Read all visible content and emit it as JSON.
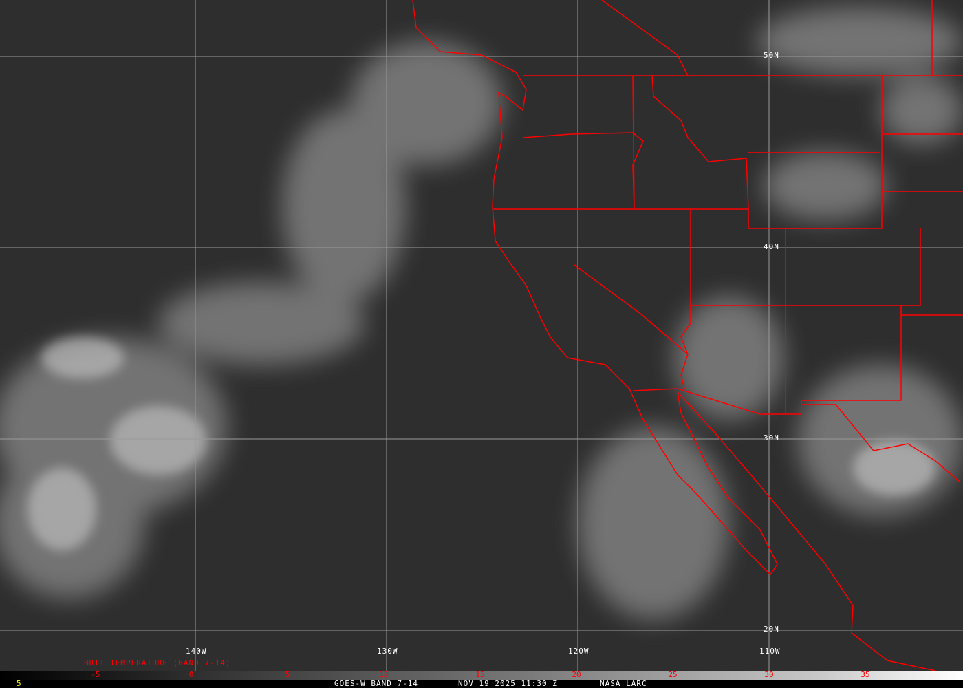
{
  "image": {
    "graticule": {
      "longitudes": [
        "140W",
        "130W",
        "120W",
        "110W"
      ],
      "latitudes": [
        "50N",
        "40N",
        "30N",
        "20N"
      ]
    },
    "colors": {
      "borders": "#ff0000",
      "grid": "#9a9a9a",
      "background": "#2e2e2e"
    },
    "scale": {
      "title": "BRIT TEMPERATURE (BAND 7-14)",
      "ticks": [
        "-5",
        "0",
        "5",
        "10",
        "15",
        "20",
        "25",
        "30",
        "35"
      ]
    },
    "footer": {
      "frame": "5",
      "satellite": "GOES-W BAND 7-14",
      "datetime": "NOV 19 2025 11:30 Z",
      "source": "NASA LARC"
    }
  }
}
